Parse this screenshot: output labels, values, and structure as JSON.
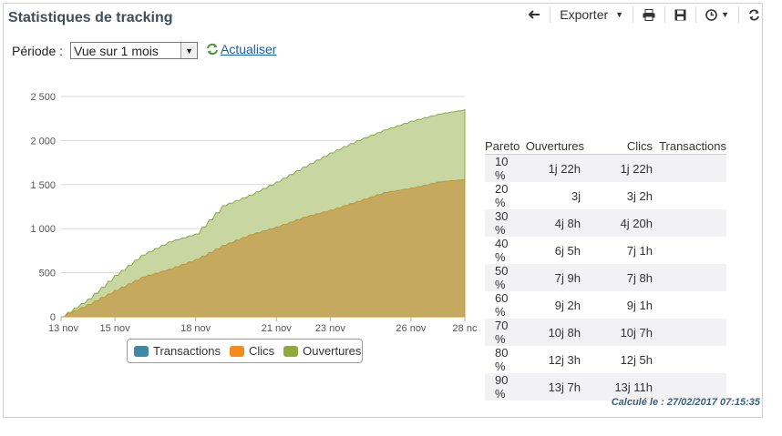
{
  "title": "Statistiques de tracking",
  "toolbar": {
    "back_icon": "back-arrow-icon",
    "export_label": "Exporter",
    "print_icon": "printer-icon",
    "save_icon": "floppy-disk-icon",
    "schedule_icon": "clock-icon",
    "refresh_icon": "refresh-icon"
  },
  "period": {
    "label": "Période :",
    "selected": "Vue sur 1 mois"
  },
  "refresh_link": "Actualiser",
  "legend": {
    "transactions": "Transactions",
    "clics": "Clics",
    "ouvertures": "Ouvertures"
  },
  "colors": {
    "transactions": "#3e88a6",
    "clics": "#f58b1f",
    "ouvertures": "#8faa3c",
    "ouvertures_fill": "#c8d6a2",
    "clics_fill": "#c5a95f"
  },
  "chart_data": {
    "type": "area",
    "x": [
      "13 nov",
      "14 nov",
      "15 nov",
      "16 nov",
      "17 nov",
      "18 nov",
      "19 nov",
      "20 nov",
      "21 nov",
      "22 nov",
      "23 nov",
      "24 nov",
      "25 nov",
      "26 nov",
      "27 nov",
      "28 nov"
    ],
    "x_tick_labels": [
      "13 nov",
      "15 nov",
      "18 nov",
      "21 nov",
      "23 nov",
      "26 nov",
      "28 nc"
    ],
    "y_ticks": [
      "0",
      "500",
      "1 000",
      "1 500",
      "2 000",
      "2 500"
    ],
    "ylim": [
      0,
      2500
    ],
    "stacking": "overlap",
    "series": [
      {
        "name": "Transactions",
        "values": [
          0,
          0,
          0,
          0,
          0,
          0,
          0,
          0,
          0,
          0,
          0,
          0,
          0,
          0,
          0,
          0
        ]
      },
      {
        "name": "Clics",
        "values": [
          0,
          140,
          300,
          450,
          540,
          650,
          810,
          930,
          1020,
          1130,
          1210,
          1310,
          1410,
          1460,
          1530,
          1560
        ]
      },
      {
        "name": "Ouvertures",
        "values": [
          0,
          200,
          470,
          700,
          850,
          940,
          1260,
          1380,
          1530,
          1700,
          1860,
          2000,
          2120,
          2220,
          2300,
          2350
        ]
      }
    ]
  },
  "pareto": {
    "headers": [
      "Pareto",
      "Ouvertures",
      "Clics",
      "Transactions"
    ],
    "rows": [
      [
        "10 %",
        "1j 22h",
        "1j 22h",
        ""
      ],
      [
        "20 %",
        "3j",
        "3j 2h",
        ""
      ],
      [
        "30 %",
        "4j 8h",
        "4j 20h",
        ""
      ],
      [
        "40 %",
        "6j 5h",
        "7j 1h",
        ""
      ],
      [
        "50 %",
        "7j 9h",
        "7j 8h",
        ""
      ],
      [
        "60 %",
        "9j 2h",
        "9j 1h",
        ""
      ],
      [
        "70 %",
        "10j 8h",
        "10j 7h",
        ""
      ],
      [
        "80 %",
        "12j 3h",
        "12j 5h",
        ""
      ],
      [
        "90 %",
        "13j 7h",
        "13j 11h",
        ""
      ]
    ]
  },
  "computed_at": "Calculé le : 27/02/2017 07:15:35"
}
